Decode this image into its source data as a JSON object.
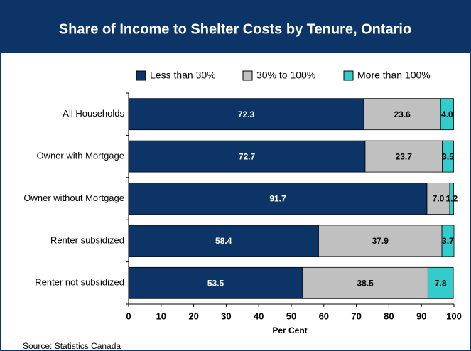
{
  "chart_data": {
    "type": "stacked-barh",
    "title": "Share of Income to Shelter Costs by Tenure, Ontario",
    "categories": [
      "All Households",
      "Owner with Mortgage",
      "Owner without Mortgage",
      "Renter subsidized",
      "Renter not subsidized"
    ],
    "series": [
      {
        "name": "Less than 30%",
        "color": "#0c3466",
        "values": [
          72.3,
          72.7,
          91.7,
          58.4,
          53.5
        ],
        "value_labels": [
          "72.3",
          "72.7",
          "91.7",
          "58.4",
          "53.5"
        ]
      },
      {
        "name": "30% to 100%",
        "color": "#c0c0c0",
        "values": [
          23.6,
          23.7,
          7.0,
          37.9,
          38.5
        ],
        "value_labels": [
          "23.6",
          "23.7",
          "7.0",
          "37.9",
          "38.5"
        ]
      },
      {
        "name": "More than 100%",
        "color": "#33cccc",
        "values": [
          4.0,
          3.5,
          1.2,
          3.7,
          7.8
        ],
        "value_labels": [
          "4.0",
          "3.5",
          "1.2",
          "3.7",
          "7.8"
        ]
      }
    ],
    "xlabel": "Per Cent",
    "xlim": [
      0,
      100
    ],
    "xticks": [
      0,
      10,
      20,
      30,
      40,
      50,
      60,
      70,
      80,
      90,
      100
    ],
    "legend": "top",
    "source": "Source: Statistics Canada"
  }
}
